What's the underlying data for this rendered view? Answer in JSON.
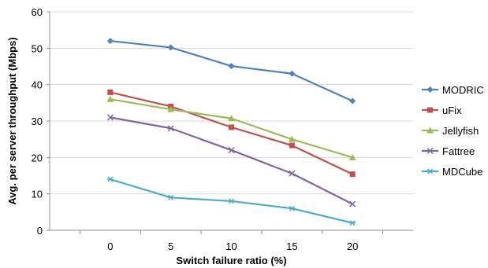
{
  "chart_data": {
    "type": "line",
    "title": "",
    "xlabel": "Switch failure ratio (%)",
    "ylabel": "Avg. per server throughput (Mbps)",
    "x": [
      0,
      5,
      10,
      15,
      20
    ],
    "xlim": [
      -5,
      25
    ],
    "ylim": [
      0,
      60
    ],
    "yticks": [
      0,
      10,
      20,
      30,
      40,
      50,
      60
    ],
    "xticks": [
      0,
      5,
      10,
      15,
      20
    ],
    "grid": "horizontal",
    "legend_position": "right",
    "series": [
      {
        "name": "MODRIC",
        "color": "#4F81BD",
        "marker": "diamond",
        "values": [
          52,
          50.2,
          45.1,
          43,
          35.5
        ]
      },
      {
        "name": "uFix",
        "color": "#C0504D",
        "marker": "square",
        "values": [
          37.9,
          34,
          28.3,
          23.3,
          15.4
        ]
      },
      {
        "name": "Jellyfish",
        "color": "#9BBB59",
        "marker": "triangle",
        "values": [
          36,
          33.2,
          30.7,
          25,
          20
        ]
      },
      {
        "name": "Fattree",
        "color": "#8064A2",
        "marker": "x",
        "values": [
          31,
          28,
          22,
          15.6,
          7.2
        ]
      },
      {
        "name": "MDCube",
        "color": "#4BACC6",
        "marker": "star",
        "values": [
          14,
          9,
          8,
          6,
          2
        ]
      }
    ]
  }
}
